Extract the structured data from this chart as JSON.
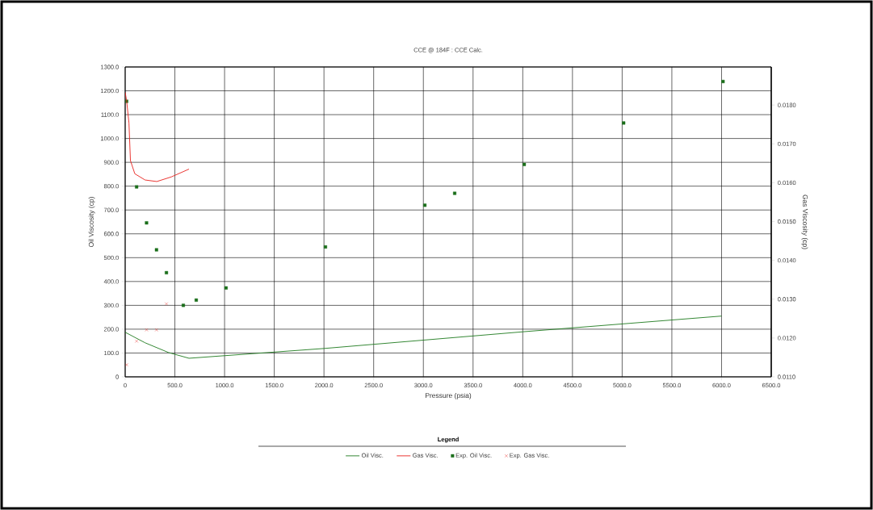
{
  "chart_data": {
    "type": "line",
    "title": "CCE @ 184F : CCE Calc.",
    "xlabel": "Pressure (psia)",
    "ylabel": "Oil Viscosity (cp)",
    "y2label": "Gas Viscosity (cp)",
    "legend_title": "Legend",
    "series": [
      {
        "name": "Oil Visc.",
        "color": "#1e7a1e",
        "marker": "none",
        "axis": "y",
        "x": [
          0,
          200,
          436,
          642,
          2000,
          4000,
          6000
        ],
        "values": [
          187,
          143,
          102,
          78,
          119,
          189,
          255
        ]
      },
      {
        "name": "Gas Visc.",
        "color": "#e8201c",
        "marker": "none",
        "axis": "y2",
        "x": [
          0,
          15,
          38,
          53,
          97,
          200,
          318,
          465,
          642
        ],
        "values": [
          0.01833,
          0.0181,
          0.01754,
          0.01657,
          0.01623,
          0.01607,
          0.01603,
          0.01615,
          0.01635
        ]
      },
      {
        "name": "Exp. Oil Visc.",
        "type": "scatter",
        "color": "#1a6e1a",
        "marker": "square",
        "axis": "y",
        "x": [
          15,
          115,
          215,
          315,
          415,
          585,
          715,
          1015,
          2015,
          3015,
          3315,
          4015,
          5015,
          6015
        ],
        "values": [
          1156,
          797,
          646,
          533,
          437,
          300,
          322,
          373,
          545,
          720,
          770,
          891,
          1065,
          1239
        ]
      },
      {
        "name": "Exp. Gas Visc.",
        "type": "scatter",
        "color": "#e8201c",
        "marker": "cross",
        "axis": "y2",
        "x": [
          15,
          115,
          215,
          315,
          415
        ],
        "values": [
          0.01131,
          0.01192,
          0.01221,
          0.01221,
          0.01288
        ]
      }
    ],
    "xlim": [
      0,
      6500
    ],
    "xticks": [
      0,
      {
        "value": 500,
        "label": "500.0"
      },
      {
        "value": 1000,
        "label": "1000.0"
      },
      {
        "value": 1500,
        "label": "1500.0"
      },
      {
        "value": 2000,
        "label": "2000.0"
      },
      {
        "value": 2500,
        "label": "2500.0"
      },
      {
        "value": 3000,
        "label": "3000.0"
      },
      {
        "value": 3500,
        "label": "3500.0"
      },
      {
        "value": 4000,
        "label": "4000.0"
      },
      {
        "value": 4500,
        "label": "4500.0"
      },
      {
        "value": 5000,
        "label": "5000.0"
      },
      {
        "value": 5500,
        "label": "5500.0"
      },
      {
        "value": 6000,
        "label": "6000.0"
      },
      {
        "value": 6500,
        "label": "6500.0"
      }
    ],
    "ylim": [
      0,
      1300
    ],
    "yticks": [
      0,
      {
        "value": 100,
        "label": "100.0"
      },
      {
        "value": 200,
        "label": "200.0"
      },
      {
        "value": 300,
        "label": "300.0"
      },
      {
        "value": 400,
        "label": "400.0"
      },
      {
        "value": 500,
        "label": "500.0"
      },
      {
        "value": 600,
        "label": "600.0"
      },
      {
        "value": 700,
        "label": "700.0"
      },
      {
        "value": 800,
        "label": "800.0"
      },
      {
        "value": 900,
        "label": "900.0"
      },
      {
        "value": 1000,
        "label": "1000.0"
      },
      {
        "value": 1100,
        "label": "1100.0"
      },
      {
        "value": 1200,
        "label": "1200.0"
      },
      {
        "value": 1300,
        "label": "1300.0"
      }
    ],
    "y2lim": [
      0.011,
      0.01898
    ],
    "y2ticks": [
      {
        "value": 0.011,
        "label": "0.0110"
      },
      {
        "value": 0.012,
        "label": "0.0120"
      },
      {
        "value": 0.013,
        "label": "0.0130"
      },
      {
        "value": 0.014,
        "label": "0.0140"
      },
      {
        "value": 0.015,
        "label": "0.0150"
      },
      {
        "value": 0.016,
        "label": "0.0160"
      },
      {
        "value": 0.017,
        "label": "0.0170"
      },
      {
        "value": 0.018,
        "label": "0.0180"
      }
    ],
    "grid": true,
    "legend": "bottom"
  }
}
